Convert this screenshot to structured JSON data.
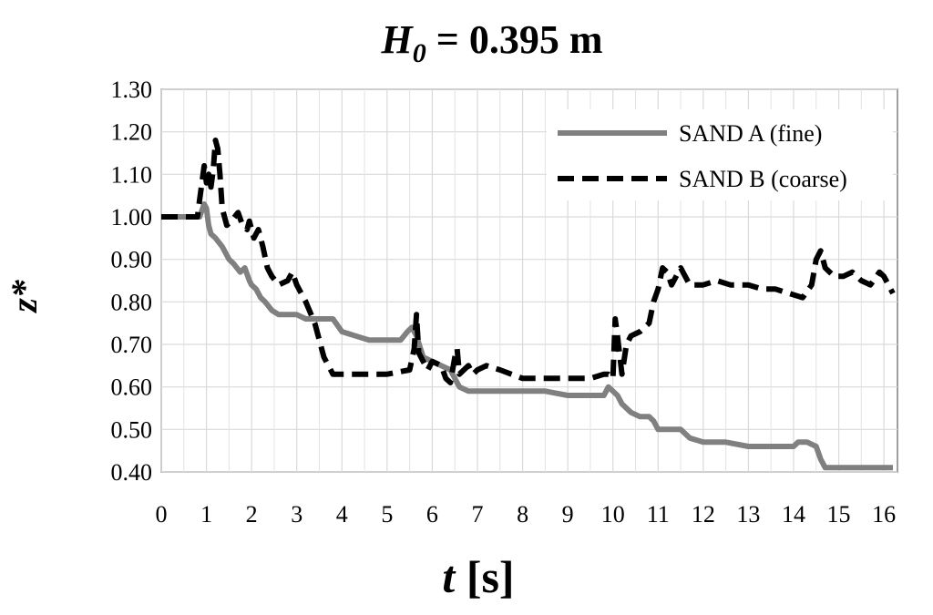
{
  "chart_data": {
    "type": "line",
    "title": {
      "symbol": "H",
      "subscript": "0",
      "rest": " = 0.395 m"
    },
    "xlabel": {
      "symbol": "t",
      "rest": " [s]"
    },
    "ylabel": "z*",
    "xlim": [
      0,
      16.3
    ],
    "ylim": [
      0.4,
      1.3
    ],
    "xticks": [
      0,
      1,
      2,
      3,
      4,
      5,
      6,
      7,
      8,
      9,
      10,
      11,
      12,
      13,
      14,
      15,
      16
    ],
    "xtick_labels": [
      "0",
      "1",
      "2",
      "3",
      "4",
      "5",
      "6",
      "7",
      "8",
      "9",
      "10",
      "11",
      "12",
      "13",
      "14",
      "15",
      "16"
    ],
    "yticks": [
      0.4,
      0.5,
      0.6,
      0.7,
      0.8,
      0.9,
      1.0,
      1.1,
      1.2,
      1.3
    ],
    "ytick_labels": [
      "0.40",
      "0.50",
      "0.60",
      "0.70",
      "0.80",
      "0.90",
      "1.00",
      "1.10",
      "1.20",
      "1.30"
    ],
    "grid": true,
    "legend_position": "top-right",
    "series": [
      {
        "name": "SAND A (fine)",
        "color": "#808080",
        "style": "solid",
        "x": [
          0,
          0.85,
          0.95,
          1.0,
          1.05,
          1.1,
          1.2,
          1.35,
          1.5,
          1.6,
          1.75,
          1.85,
          1.95,
          2.0,
          2.1,
          2.2,
          2.3,
          2.45,
          2.6,
          2.8,
          3.0,
          3.2,
          3.5,
          3.8,
          4.0,
          4.3,
          4.6,
          5.0,
          5.3,
          5.45,
          5.55,
          5.65,
          5.8,
          6.0,
          6.2,
          6.4,
          6.6,
          6.8,
          7.0,
          7.5,
          8.0,
          8.5,
          9.0,
          9.5,
          9.8,
          9.9,
          10.0,
          10.1,
          10.2,
          10.4,
          10.6,
          10.8,
          10.9,
          11.0,
          11.2,
          11.5,
          11.7,
          12.0,
          12.5,
          13.0,
          13.5,
          14.0,
          14.1,
          14.3,
          14.5,
          14.6,
          14.7,
          15.0,
          15.5,
          16.0,
          16.2
        ],
        "y": [
          1.0,
          1.0,
          1.03,
          1.02,
          0.98,
          0.96,
          0.95,
          0.93,
          0.9,
          0.89,
          0.87,
          0.88,
          0.85,
          0.84,
          0.83,
          0.81,
          0.8,
          0.78,
          0.77,
          0.77,
          0.77,
          0.76,
          0.76,
          0.76,
          0.73,
          0.72,
          0.71,
          0.71,
          0.71,
          0.73,
          0.74,
          0.72,
          0.67,
          0.66,
          0.65,
          0.64,
          0.6,
          0.59,
          0.59,
          0.59,
          0.59,
          0.59,
          0.58,
          0.58,
          0.58,
          0.6,
          0.59,
          0.58,
          0.56,
          0.54,
          0.53,
          0.53,
          0.52,
          0.5,
          0.5,
          0.5,
          0.48,
          0.47,
          0.47,
          0.46,
          0.46,
          0.46,
          0.47,
          0.47,
          0.46,
          0.43,
          0.41,
          0.41,
          0.41,
          0.41,
          0.41
        ]
      },
      {
        "name": "SAND B (coarse)",
        "color": "#000000",
        "style": "dashed",
        "x": [
          0,
          0.8,
          0.85,
          0.95,
          1.0,
          1.05,
          1.1,
          1.15,
          1.2,
          1.25,
          1.3,
          1.35,
          1.45,
          1.55,
          1.7,
          1.8,
          1.9,
          1.95,
          2.05,
          2.15,
          2.2,
          2.25,
          2.35,
          2.45,
          2.6,
          2.8,
          2.9,
          3.0,
          3.2,
          3.4,
          3.6,
          3.8,
          4.0,
          4.5,
          5.0,
          5.5,
          5.6,
          5.65,
          5.7,
          5.8,
          5.9,
          6.0,
          6.2,
          6.3,
          6.4,
          6.5,
          6.55,
          6.6,
          6.7,
          6.8,
          6.9,
          7.0,
          7.2,
          7.5,
          8.0,
          8.5,
          9.0,
          9.5,
          9.8,
          9.9,
          10.0,
          10.05,
          10.1,
          10.2,
          10.3,
          10.4,
          10.6,
          10.8,
          10.9,
          11.0,
          11.1,
          11.2,
          11.3,
          11.5,
          11.7,
          12.0,
          12.3,
          12.6,
          13.0,
          13.3,
          13.6,
          13.9,
          14.2,
          14.4,
          14.5,
          14.6,
          14.7,
          14.9,
          15.1,
          15.3,
          15.5,
          15.7,
          15.9,
          16.0,
          16.2
        ],
        "y": [
          1.0,
          1.0,
          1.04,
          1.12,
          1.08,
          1.1,
          1.07,
          1.11,
          1.18,
          1.16,
          1.1,
          1.02,
          0.98,
          0.99,
          1.01,
          0.98,
          0.97,
          0.99,
          0.95,
          0.97,
          0.95,
          0.93,
          0.88,
          0.86,
          0.84,
          0.85,
          0.87,
          0.84,
          0.8,
          0.75,
          0.67,
          0.63,
          0.63,
          0.63,
          0.63,
          0.64,
          0.69,
          0.77,
          0.68,
          0.66,
          0.64,
          0.66,
          0.65,
          0.62,
          0.61,
          0.67,
          0.69,
          0.63,
          0.64,
          0.65,
          0.63,
          0.64,
          0.65,
          0.64,
          0.62,
          0.62,
          0.62,
          0.62,
          0.63,
          0.63,
          0.62,
          0.76,
          0.72,
          0.63,
          0.7,
          0.72,
          0.73,
          0.75,
          0.8,
          0.83,
          0.88,
          0.87,
          0.84,
          0.88,
          0.84,
          0.84,
          0.85,
          0.84,
          0.84,
          0.83,
          0.83,
          0.82,
          0.81,
          0.84,
          0.9,
          0.92,
          0.88,
          0.86,
          0.86,
          0.87,
          0.85,
          0.84,
          0.87,
          0.86,
          0.82
        ]
      }
    ]
  }
}
